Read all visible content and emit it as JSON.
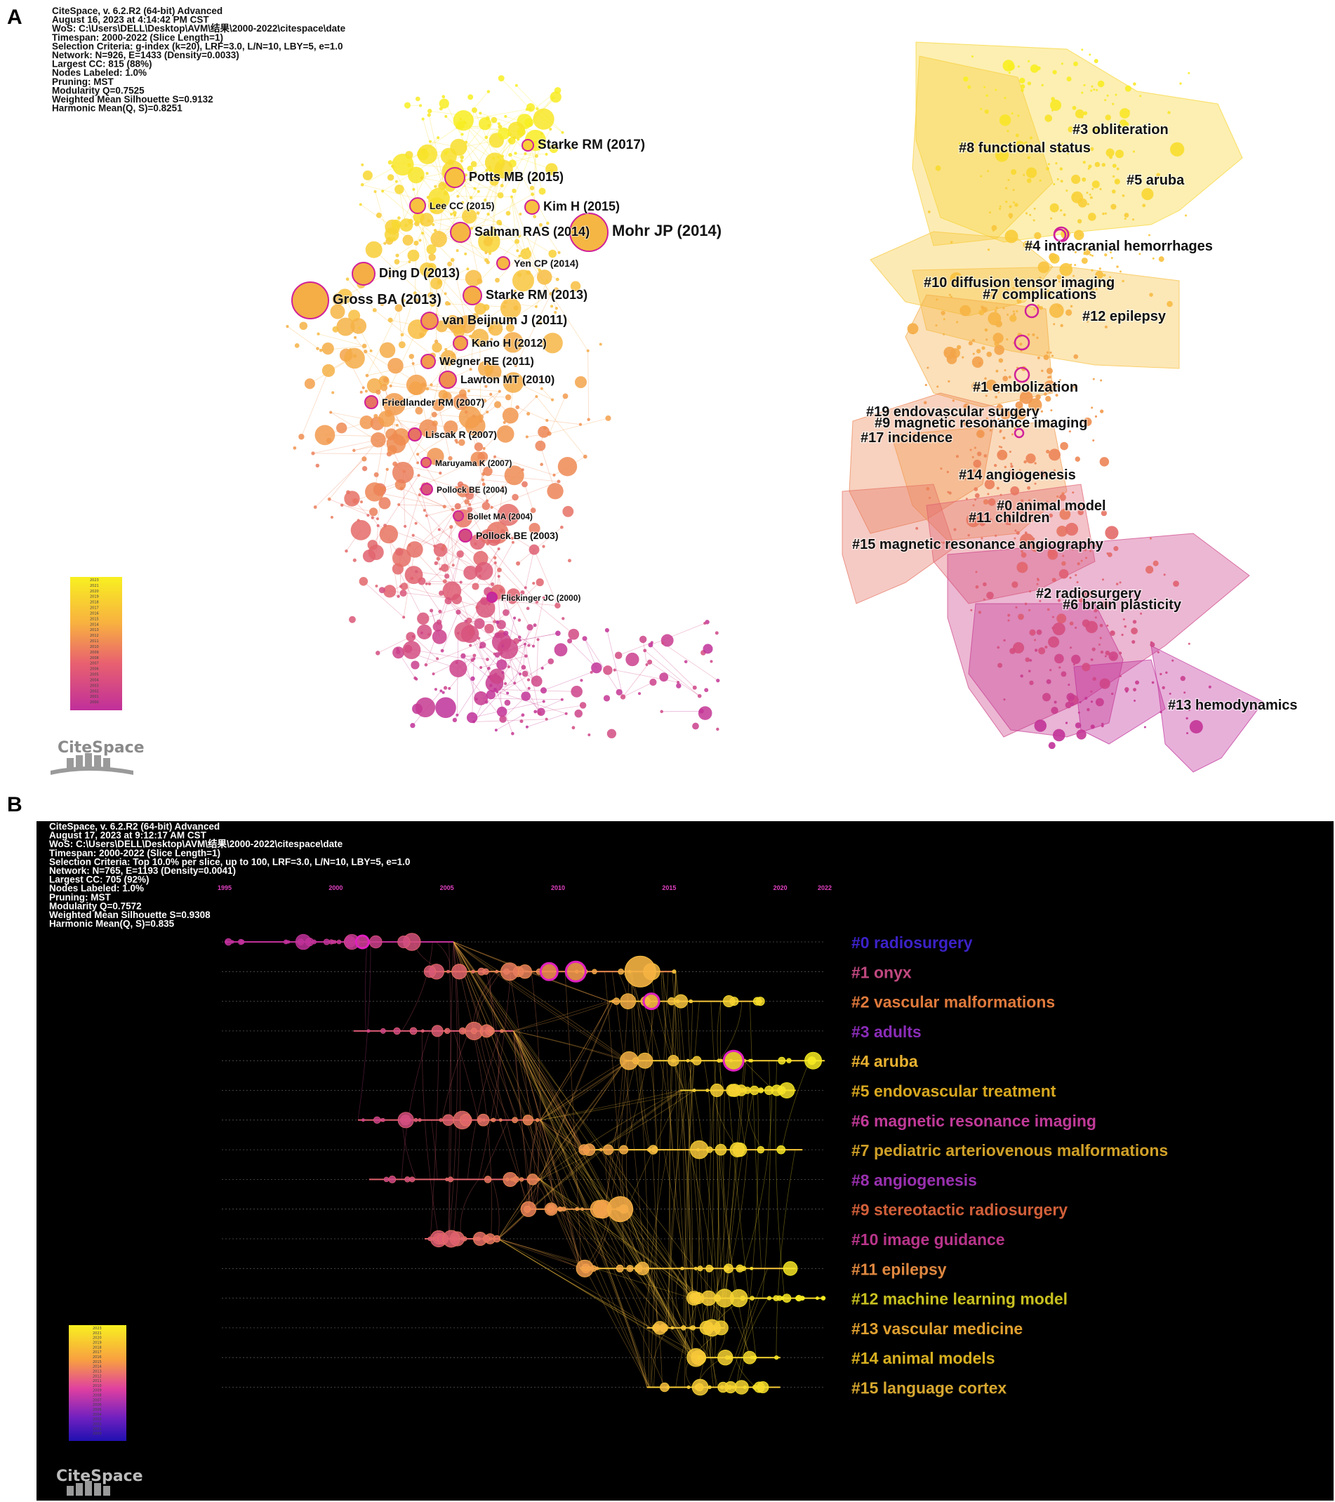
{
  "panel_a": {
    "letter": "A",
    "meta_lines": [
      "CiteSpace, v. 6.2.R2 (64-bit) Advanced",
      "August 16, 2023 at 4:14:42 PM CST",
      "WoS: C:\\Users\\DELL\\Desktop\\AVM\\结果\\2000-2022\\citespace\\date",
      "Timespan: 2000-2022 (Slice Length=1)",
      "Selection Criteria: g-index (k=20), LRF=3.0, L/N=10, LBY=5, e=1.0",
      "Network: N=926, E=1433 (Density=0.0033)",
      "Largest CC: 815 (88%)",
      "Nodes Labeled: 1.0%",
      "Pruning: MST",
      "Modularity Q=0.7525",
      "Weighted Mean Silhouette S=0.9132",
      "Harmonic Mean(Q, S)=0.8251"
    ],
    "logo": "CiteSpace"
  },
  "panel_b": {
    "letter": "B",
    "meta_lines": [
      "CiteSpace, v. 6.2.R2 (64-bit) Advanced",
      "August 17, 2023 at 9:12:17 AM CST",
      "WoS: C:\\Users\\DELL\\Desktop\\AVM\\结果\\2000-2022\\citespace\\date",
      "Timespan: 2000-2022 (Slice Length=1)",
      "Selection Criteria: Top 10.0% per slice, up to 100, LRF=3.0, L/N=10, LBY=5, e=1.0",
      "Network: N=765, E=1193 (Density=0.0041)",
      "Largest CC: 705 (92%)",
      "Nodes Labeled: 1.0%",
      "Pruning: MST",
      "Modularity Q=0.7572",
      "Weighted Mean Silhouette S=0.9308",
      "Harmonic Mean(Q, S)=0.835"
    ],
    "logo": "CiteSpace"
  },
  "colors": {
    "year_2000": "#c0309a",
    "year_2005": "#e06070",
    "year_2010": "#f09050",
    "year_2015": "#f8c040",
    "year_2022": "#f8f020",
    "timeline_bg": "#000000",
    "tick_color": "#e040c0"
  },
  "chart_data": [
    {
      "type": "network",
      "title": "Co-citation reference network",
      "time_range": [
        2000,
        2022
      ],
      "legend_years": [
        "2023",
        "2021",
        "2020",
        "2019",
        "2018",
        "2017",
        "2016",
        "2015",
        "2014",
        "2013",
        "2012",
        "2011",
        "2010",
        "2009",
        "2008",
        "2007",
        "2006",
        "2005",
        "2004",
        "2003",
        "2002",
        "2001",
        "2000"
      ],
      "labeled_nodes": [
        {
          "label": "Starke RM (2017)",
          "year": 2017,
          "size": "medium"
        },
        {
          "label": "Potts MB (2015)",
          "year": 2015,
          "size": "medium"
        },
        {
          "label": "Lee CC (2015)",
          "year": 2015,
          "size": "small"
        },
        {
          "label": "Kim H (2015)",
          "year": 2015,
          "size": "medium"
        },
        {
          "label": "Salman RAS (2014)",
          "year": 2014,
          "size": "medium"
        },
        {
          "label": "Mohr JP (2014)",
          "year": 2014,
          "size": "large"
        },
        {
          "label": "Yen CP (2014)",
          "year": 2014,
          "size": "small"
        },
        {
          "label": "Ding D (2013)",
          "year": 2013,
          "size": "medium"
        },
        {
          "label": "Gross BA (2013)",
          "year": 2013,
          "size": "large"
        },
        {
          "label": "Starke RM (2013)",
          "year": 2013,
          "size": "medium"
        },
        {
          "label": "van Beijnum J (2011)",
          "year": 2011,
          "size": "medium"
        },
        {
          "label": "Kano H (2012)",
          "year": 2012,
          "size": "small"
        },
        {
          "label": "Wegner RE (2011)",
          "year": 2011,
          "size": "small"
        },
        {
          "label": "Lawton MT (2010)",
          "year": 2010,
          "size": "small"
        },
        {
          "label": "Friedlander RM (2007)",
          "year": 2007,
          "size": "small"
        },
        {
          "label": "Liscak R (2007)",
          "year": 2007,
          "size": "small"
        },
        {
          "label": "Maruyama K (2007)",
          "year": 2007,
          "size": "small"
        },
        {
          "label": "Pollock BE (2004)",
          "year": 2004,
          "size": "small"
        },
        {
          "label": "Bollet MA (2004)",
          "year": 2004,
          "size": "small"
        },
        {
          "label": "Pollock BE (2003)",
          "year": 2003,
          "size": "small"
        },
        {
          "label": "Flickinger JC (2000)",
          "year": 2000,
          "size": "small"
        }
      ],
      "clusters": [
        {
          "id": 3,
          "label": "#3 obliteration"
        },
        {
          "id": 8,
          "label": "#8 functional status"
        },
        {
          "id": 5,
          "label": "#5 aruba"
        },
        {
          "id": 4,
          "label": "#4 intracranial hemorrhages"
        },
        {
          "id": 10,
          "label": "#10 diffusion tensor imaging"
        },
        {
          "id": 7,
          "label": "#7 complications"
        },
        {
          "id": 12,
          "label": "#12 epilepsy"
        },
        {
          "id": 1,
          "label": "#1 embolization"
        },
        {
          "id": 19,
          "label": "#19 endovascular surgery"
        },
        {
          "id": 9,
          "label": "#9 magnetic resonance imaging"
        },
        {
          "id": 17,
          "label": "#17 incidence"
        },
        {
          "id": 14,
          "label": "#14 angiogenesis"
        },
        {
          "id": 0,
          "label": "#0 animal model"
        },
        {
          "id": 11,
          "label": "#11 children"
        },
        {
          "id": 15,
          "label": "#15 magnetic resonance angiography"
        },
        {
          "id": 2,
          "label": "#2 radiosurgery"
        },
        {
          "id": 6,
          "label": "#6 brain plasticity"
        },
        {
          "id": 13,
          "label": "#13 hemodynamics"
        }
      ]
    },
    {
      "type": "timeline",
      "title": "Timeline view of co-citation clusters",
      "x_ticks": [
        1995,
        2000,
        2005,
        2010,
        2015,
        2020,
        2022
      ],
      "xlim": [
        1995,
        2022
      ],
      "legend_years": [
        "2023",
        "2021",
        "2020",
        "2019",
        "2018",
        "2017",
        "2016",
        "2015",
        "2014",
        "2013",
        "2012",
        "2011",
        "2010",
        "2009",
        "2008",
        "2007",
        "2006",
        "2005",
        "2004",
        "2003",
        "2002",
        "2001",
        "2000"
      ],
      "clusters": [
        {
          "label": "#0 radiosurgery",
          "start": 1995,
          "end": 2005.3,
          "color": "#3b22c8"
        },
        {
          "label": "#1 onyx",
          "start": 2004,
          "end": 2015.3,
          "color": "#c04880"
        },
        {
          "label": "#2 vascular malformations",
          "start": 2012.3,
          "end": 2019.2,
          "color": "#e07a3c"
        },
        {
          "label": "#3 adults",
          "start": 2000.8,
          "end": 2008,
          "color": "#8a2cb8"
        },
        {
          "label": "#4 aruba",
          "start": 2013,
          "end": 2022,
          "color": "#e8b030"
        },
        {
          "label": "#5 endovascular treatment",
          "start": 2015.5,
          "end": 2020.7,
          "color": "#d9a820"
        },
        {
          "label": "#6 magnetic resonance imaging",
          "start": 2001,
          "end": 2009.2,
          "color": "#c03a98"
        },
        {
          "label": "#7 pediatric arteriovenous malformations",
          "start": 2011,
          "end": 2021,
          "color": "#d0a028"
        },
        {
          "label": "#8 angiogenesis",
          "start": 2001.5,
          "end": 2009.2,
          "color": "#9a30b0"
        },
        {
          "label": "#9 stereotactic radiosurgery",
          "start": 2008.6,
          "end": 2013.1,
          "color": "#d2603a"
        },
        {
          "label": "#10 image guidance",
          "start": 2004,
          "end": 2007.3,
          "color": "#b8358a"
        },
        {
          "label": "#11 epilepsy",
          "start": 2011,
          "end": 2020.7,
          "color": "#e08840"
        },
        {
          "label": "#12 machine learning model",
          "start": 2016,
          "end": 2022,
          "color": "#c8c020"
        },
        {
          "label": "#13 vascular medicine",
          "start": 2014,
          "end": 2017.5,
          "color": "#e0a030"
        },
        {
          "label": "#14 animal models",
          "start": 2016,
          "end": 2020,
          "color": "#d8b020"
        },
        {
          "label": "#15  language cortex",
          "start": 2014,
          "end": 2020,
          "color": "#d8a830"
        }
      ]
    }
  ]
}
